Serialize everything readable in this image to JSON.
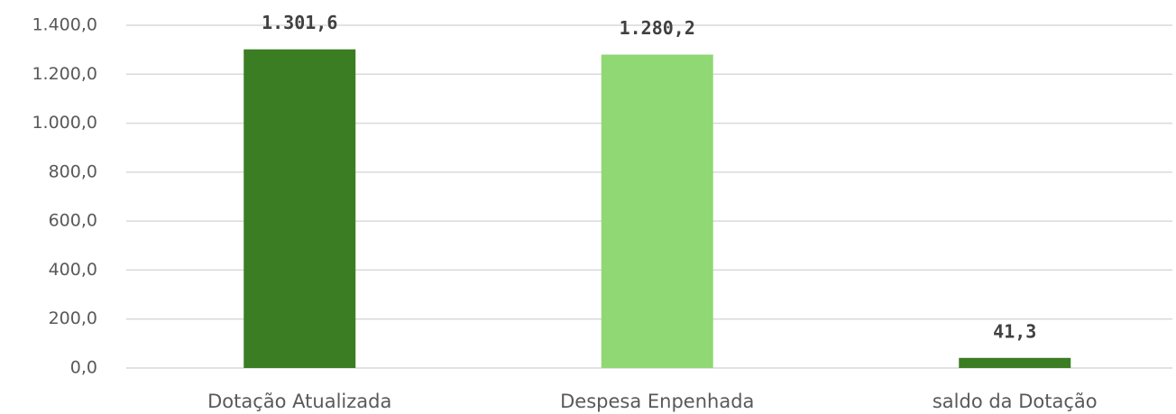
{
  "chart_data": {
    "type": "bar",
    "categories": [
      "Dotação Atualizada",
      "Despesa Enpenhada",
      "saldo da Dotação"
    ],
    "values": [
      1301.6,
      1280.2,
      41.3
    ],
    "value_labels": [
      "1.301,6",
      "1.280,2",
      "41,3"
    ],
    "colors": [
      "#3b7d23",
      "#8fd874",
      "#3b7d23"
    ],
    "ylim": [
      0,
      1400
    ],
    "yticks": [
      {
        "value": 0,
        "label": "0,0"
      },
      {
        "value": 200,
        "label": "200,0"
      },
      {
        "value": 400,
        "label": "400,0"
      },
      {
        "value": 600,
        "label": "600,0"
      },
      {
        "value": 800,
        "label": "800,0"
      },
      {
        "value": 1000,
        "label": "1.000,0"
      },
      {
        "value": 1200,
        "label": "1.200,0"
      },
      {
        "value": 1400,
        "label": "1.400,0"
      }
    ],
    "grid": true
  }
}
